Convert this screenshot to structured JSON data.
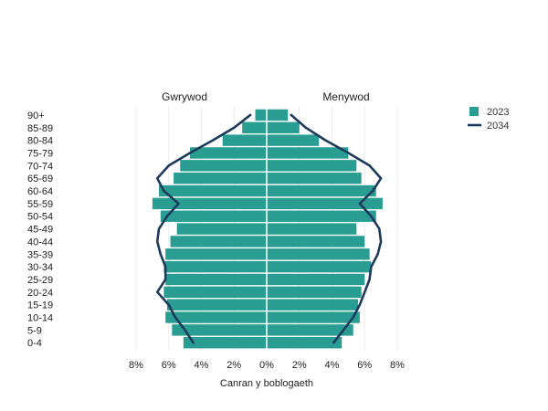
{
  "chart_data": {
    "type": "bar",
    "orientation": "horizontal-pyramid",
    "title": "",
    "xlabel": "Canran y boblogaeth",
    "ylabel": "",
    "sex_labels": {
      "left": "Gwrywod",
      "right": "Menywod"
    },
    "categories": [
      "90+",
      "85-89",
      "80-84",
      "75-79",
      "70-74",
      "65-69",
      "60-64",
      "55-59",
      "50-54",
      "45-49",
      "40-44",
      "35-39",
      "30-34",
      "25-29",
      "20-24",
      "15-19",
      "10-14",
      "5-9",
      "0-4"
    ],
    "x_ticks": [
      "8%",
      "6%",
      "4%",
      "2%",
      "0%",
      "2%",
      "4%",
      "6%",
      "8%"
    ],
    "xlim": [
      -8,
      8
    ],
    "grid": true,
    "legend_position": "top-right",
    "series": [
      {
        "name": "2023",
        "kind": "bar",
        "color": "#2a9d93",
        "male": [
          0.7,
          1.5,
          2.7,
          4.7,
          5.3,
          5.7,
          6.6,
          7.0,
          6.5,
          5.5,
          5.9,
          6.2,
          6.3,
          6.2,
          6.3,
          6.1,
          6.2,
          5.8,
          5.1
        ],
        "female": [
          1.3,
          2.0,
          3.2,
          5.0,
          5.5,
          5.8,
          6.7,
          7.1,
          6.7,
          5.5,
          6.0,
          6.3,
          6.4,
          6.0,
          5.8,
          5.6,
          5.7,
          5.3,
          4.6
        ]
      },
      {
        "name": "2034",
        "kind": "line",
        "color": "#1b3a5c",
        "male": [
          1.0,
          2.0,
          3.3,
          4.7,
          6.0,
          6.7,
          6.3,
          5.4,
          6.1,
          6.6,
          6.7,
          6.5,
          6.2,
          6.2,
          6.7,
          6.0,
          5.6,
          5.0,
          4.5
        ],
        "female": [
          1.5,
          2.4,
          3.6,
          5.0,
          6.3,
          7.0,
          6.5,
          5.7,
          6.4,
          6.9,
          7.0,
          6.8,
          6.4,
          6.3,
          6.0,
          5.7,
          5.3,
          4.7,
          4.1
        ]
      }
    ]
  }
}
